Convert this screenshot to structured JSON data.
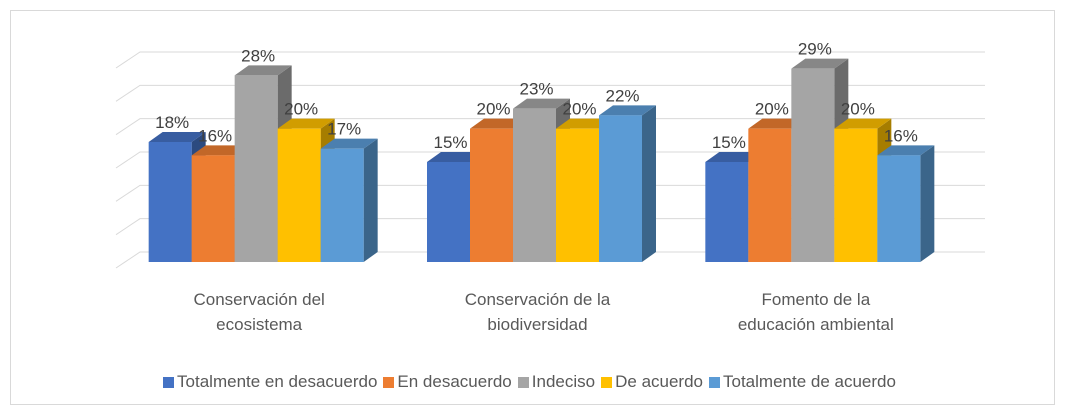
{
  "chart_data": {
    "type": "bar3d",
    "categories": [
      "Conservación del ecosistema",
      "Conservación de la biodiversidad",
      "Fomento de la educación ambiental"
    ],
    "series": [
      {
        "name": "Totalmente en desacuerdo",
        "color": "#4472c4",
        "values": [
          18,
          15,
          15
        ],
        "value_labels": [
          "18%",
          "15%",
          "15%"
        ]
      },
      {
        "name": "En desacuerdo",
        "color": "#ed7d31",
        "values": [
          16,
          20,
          20
        ],
        "value_labels": [
          "16%",
          "20%",
          "20%"
        ]
      },
      {
        "name": "Indeciso",
        "color": "#a5a5a5",
        "values": [
          28,
          23,
          29
        ],
        "value_labels": [
          "28%",
          "23%",
          "29%"
        ]
      },
      {
        "name": "De acuerdo",
        "color": "#ffc000",
        "values": [
          20,
          20,
          20
        ],
        "value_labels": [
          "20%",
          "20%",
          "20%"
        ]
      },
      {
        "name": "Totalmente de acuerdo",
        "color": "#5b9bd5",
        "values": [
          17,
          22,
          16
        ],
        "value_labels": [
          "17%",
          "22%",
          "16%"
        ]
      }
    ],
    "ylim": [
      0,
      30
    ],
    "yticks": [
      0,
      5,
      10,
      15,
      20,
      25,
      30
    ],
    "grid": true,
    "legend": "bottom"
  }
}
